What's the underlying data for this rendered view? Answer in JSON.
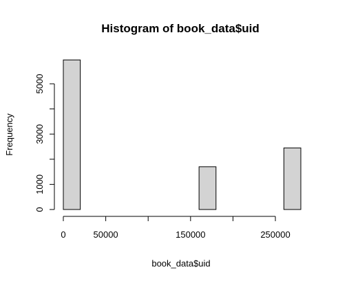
{
  "chart_data": {
    "type": "bar",
    "title": "Histogram of book_data$uid",
    "xlabel": "book_data$uid",
    "ylabel": "Frequency",
    "xlim": [
      0,
      280000
    ],
    "ylim": [
      0,
      6000
    ],
    "x_ticks": [
      0,
      50000,
      100000,
      150000,
      200000,
      250000
    ],
    "x_tick_labels": [
      "0",
      "50000",
      "",
      "150000",
      "",
      "250000"
    ],
    "y_ticks": [
      0,
      1000,
      2000,
      3000,
      4000,
      5000
    ],
    "y_tick_labels": [
      "0",
      "1000",
      "",
      "3000",
      "",
      "5000"
    ],
    "bins": [
      {
        "x0": 0,
        "x1": 20000,
        "count": 5950
      },
      {
        "x0": 20000,
        "x1": 40000,
        "count": 0
      },
      {
        "x0": 40000,
        "x1": 60000,
        "count": 0
      },
      {
        "x0": 60000,
        "x1": 80000,
        "count": 0
      },
      {
        "x0": 80000,
        "x1": 100000,
        "count": 0
      },
      {
        "x0": 100000,
        "x1": 120000,
        "count": 0
      },
      {
        "x0": 120000,
        "x1": 140000,
        "count": 0
      },
      {
        "x0": 140000,
        "x1": 160000,
        "count": 0
      },
      {
        "x0": 160000,
        "x1": 180000,
        "count": 1700
      },
      {
        "x0": 180000,
        "x1": 200000,
        "count": 0
      },
      {
        "x0": 200000,
        "x1": 220000,
        "count": 0
      },
      {
        "x0": 220000,
        "x1": 240000,
        "count": 0
      },
      {
        "x0": 240000,
        "x1": 260000,
        "count": 0
      },
      {
        "x0": 260000,
        "x1": 280000,
        "count": 2450
      }
    ],
    "bar_color": "#d3d3d3",
    "grid": false
  }
}
